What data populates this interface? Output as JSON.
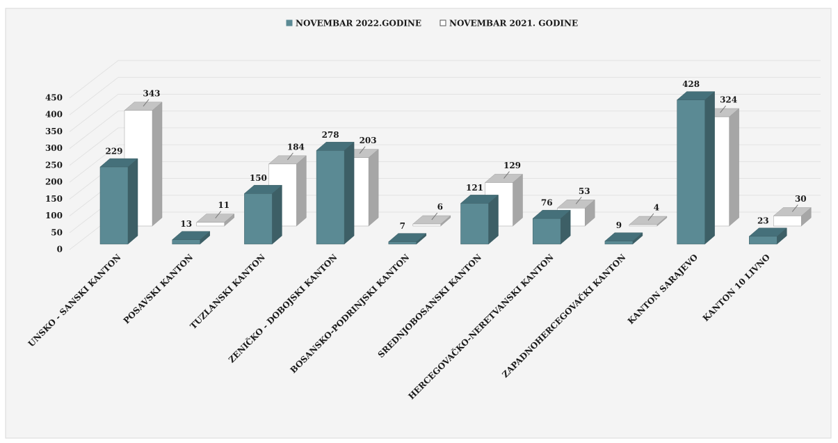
{
  "chart_data": {
    "type": "bar3d",
    "categories": [
      "UNSKO - SANSKI KANTON",
      "POSAVSKI KANTON",
      "TUZLANSKI KANTON",
      "ZENIČKO - DOBOJSKI KANTON",
      "BOSANSKO-PODRINJSKI KANTON",
      "SREDNJOBOSANSKI KANTON",
      "HERCEGOVAČKO-NERETVANSKI KANTON",
      "ZAPADNOHERCEGOVAČKI KANTON",
      "KANTON SARAJEVO",
      "KANTON 10 LIVNO"
    ],
    "series": [
      {
        "name": "NOVEMBAR 2022.GODINE",
        "color": "#5b8a94",
        "values": [
          229,
          13,
          150,
          278,
          7,
          121,
          76,
          9,
          428,
          23
        ]
      },
      {
        "name": "NOVEMBAR 2021. GODINE",
        "color": "#ffffff",
        "values": [
          343,
          11,
          184,
          203,
          6,
          129,
          53,
          4,
          324,
          30
        ]
      }
    ],
    "ylim": [
      0,
      450
    ],
    "yticks": [
      0,
      50,
      100,
      150,
      200,
      250,
      300,
      350,
      400,
      450
    ],
    "grid": true,
    "legend": "top"
  }
}
